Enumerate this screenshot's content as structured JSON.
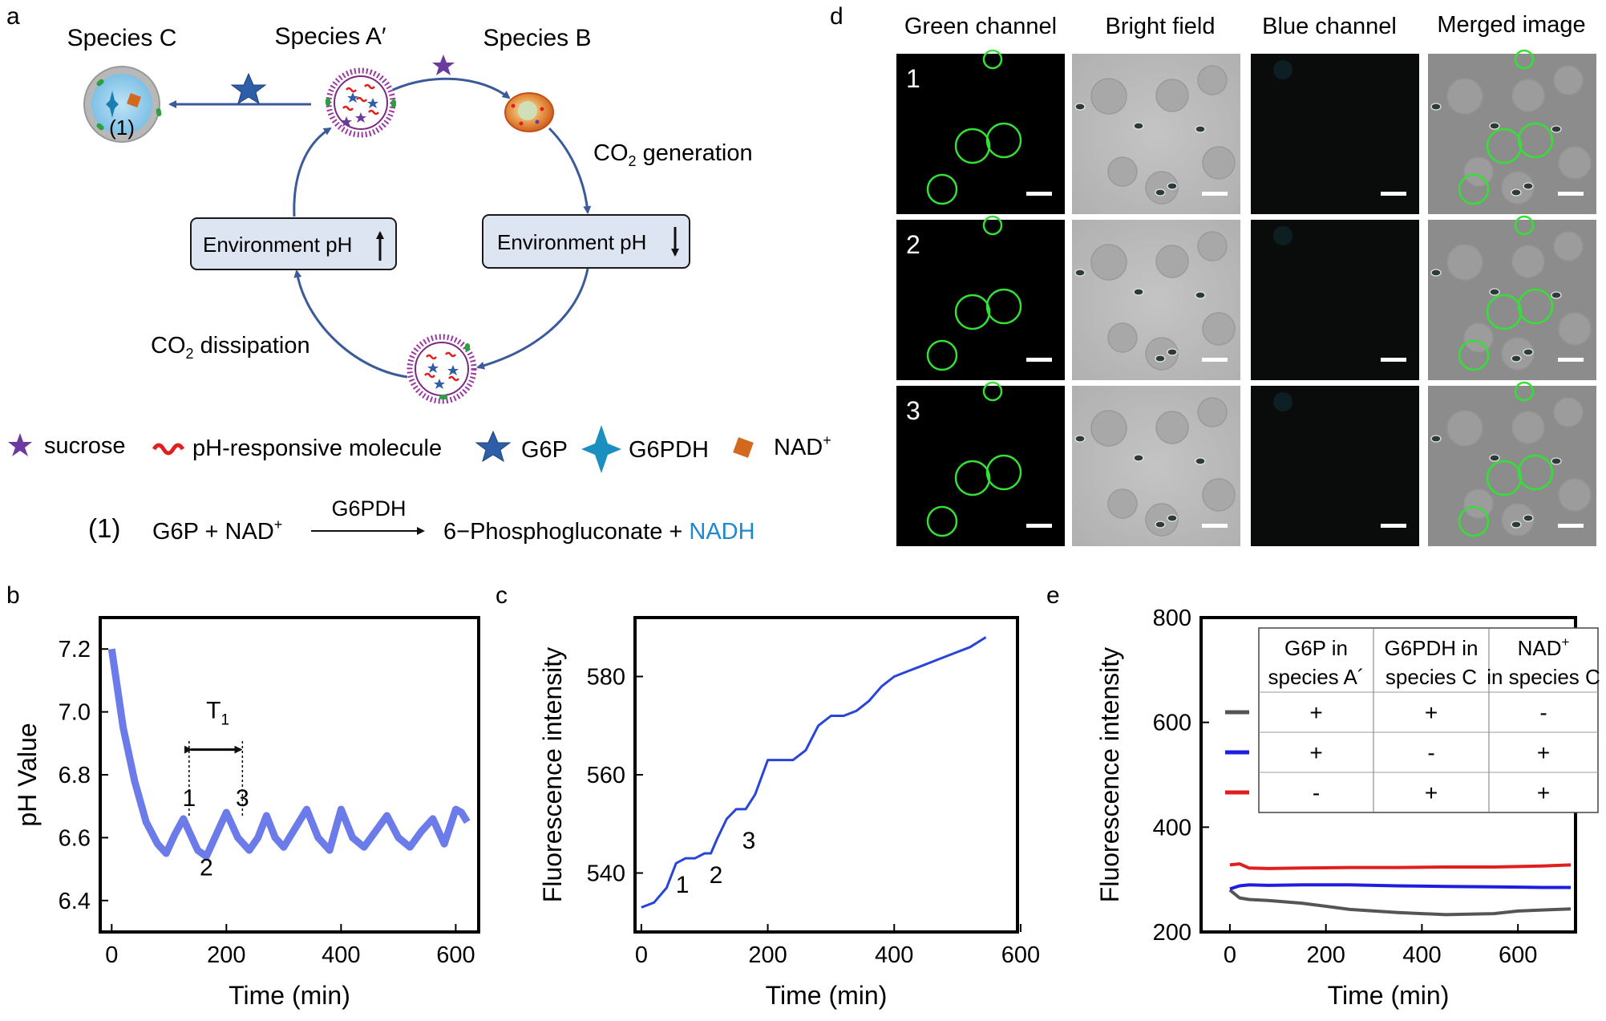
{
  "panel_labels": {
    "a": "a",
    "b": "b",
    "c": "c",
    "d": "d",
    "e": "e"
  },
  "panel_a": {
    "species_c": "Species C",
    "species_a": "Species A′",
    "species_b": "Species B",
    "reaction_tag": "(1)",
    "co2_generation": "CO",
    "co2_generation_sub": "2",
    "co2_generation_rest": " generation",
    "co2_dissipation": "CO",
    "co2_dissipation_sub": "2",
    "co2_dissipation_rest": " dissipation",
    "env_ph_up": "Environment pH",
    "env_ph_down": "Environment pH",
    "legend": {
      "sucrose": "sucrose",
      "ph_molecule": "pH-responsive molecule",
      "g6p": "G6P",
      "g6pdh": "G6PDH",
      "nad": "NAD",
      "nad_sup": "+"
    },
    "equation": {
      "tag": "(1)",
      "left": "G6P + NAD",
      "left_sup": "+",
      "enzyme": "G6PDH",
      "right": "6−Phosphogluconate + ",
      "product": "NADH"
    },
    "colors": {
      "arrow": "#3a5a9a",
      "box": "#dde4f2",
      "star_purple": "#6a3aa0",
      "star_blue": "#2e5ea8",
      "wave_red": "#e02020",
      "nad": "#d2691e",
      "nadh": "#1e88d0"
    }
  },
  "panel_d": {
    "columns": [
      "Green channel",
      "Bright field",
      "Blue channel",
      "Merged image"
    ],
    "rows": [
      "1",
      "2",
      "3"
    ]
  },
  "chart_data": [
    {
      "id": "b",
      "type": "line",
      "xlabel": "Time (min)",
      "ylabel": "pH Value",
      "xlim": [
        -20,
        640
      ],
      "ylim": [
        6.3,
        7.3
      ],
      "xticks": [
        0,
        200,
        400,
        600
      ],
      "yticks": [
        6.4,
        6.6,
        6.8,
        7.0,
        7.2
      ],
      "ytick_labels": [
        "6.4",
        "6.6",
        "6.8",
        "7.0",
        "7.2"
      ],
      "series": [
        {
          "color": "#6b7cea",
          "x": [
            0,
            20,
            40,
            60,
            80,
            95,
            110,
            125,
            135,
            150,
            165,
            180,
            200,
            220,
            240,
            255,
            270,
            285,
            300,
            320,
            340,
            360,
            380,
            400,
            420,
            440,
            460,
            480,
            500,
            520,
            540,
            560,
            580,
            600,
            610,
            620
          ],
          "y": [
            7.2,
            6.95,
            6.78,
            6.65,
            6.58,
            6.55,
            6.61,
            6.66,
            6.62,
            6.56,
            6.54,
            6.6,
            6.68,
            6.6,
            6.56,
            6.6,
            6.67,
            6.6,
            6.57,
            6.63,
            6.69,
            6.6,
            6.56,
            6.69,
            6.6,
            6.57,
            6.62,
            6.67,
            6.6,
            6.57,
            6.62,
            6.66,
            6.58,
            6.69,
            6.68,
            6.65
          ]
        }
      ],
      "annotations": [
        {
          "text": "T",
          "sub": "1",
          "x": 185,
          "y": 6.98
        },
        {
          "text": "1",
          "x": 135,
          "y": 6.7
        },
        {
          "text": "3",
          "x": 228,
          "y": 6.7
        },
        {
          "text": "2",
          "x": 165,
          "y": 6.48
        }
      ],
      "bracket": {
        "x1": 135,
        "x2": 228,
        "y": 6.88,
        "ybase": 6.67
      }
    },
    {
      "id": "c",
      "type": "line",
      "xlabel": "Time (min)",
      "ylabel": "Fluorescence intensity",
      "xlim": [
        -10,
        595
      ],
      "ylim": [
        528,
        592
      ],
      "xticks": [
        0,
        200,
        400,
        600
      ],
      "yticks": [
        540,
        560,
        580
      ],
      "series": [
        {
          "color": "#2845d8",
          "x": [
            0,
            20,
            40,
            55,
            70,
            85,
            100,
            110,
            120,
            135,
            150,
            165,
            180,
            200,
            220,
            240,
            260,
            280,
            300,
            320,
            340,
            360,
            380,
            400,
            420,
            440,
            460,
            480,
            500,
            520,
            545
          ],
          "y": [
            533,
            534,
            537,
            542,
            543,
            543,
            544,
            544,
            547,
            551,
            553,
            553,
            556,
            563,
            563,
            563,
            565,
            570,
            572,
            572,
            573,
            575,
            578,
            580,
            581,
            582,
            583,
            584,
            585,
            586,
            588
          ]
        }
      ],
      "annotations": [
        {
          "text": "1",
          "x": 65,
          "y": 536
        },
        {
          "text": "2",
          "x": 118,
          "y": 538
        },
        {
          "text": "3",
          "x": 170,
          "y": 545
        }
      ]
    },
    {
      "id": "e",
      "type": "line",
      "xlabel": "Time (min)",
      "ylabel": "Fluorescence intensity",
      "xlim": [
        -60,
        720
      ],
      "ylim": [
        200,
        800
      ],
      "xticks": [
        0,
        200,
        400,
        600
      ],
      "yticks": [
        200,
        400,
        600,
        800
      ],
      "series": [
        {
          "color": "#555555",
          "x": [
            0,
            20,
            40,
            80,
            150,
            250,
            350,
            450,
            550,
            600,
            650,
            710
          ],
          "y": [
            280,
            265,
            262,
            260,
            255,
            243,
            237,
            233,
            235,
            240,
            242,
            244
          ]
        },
        {
          "color": "#1e1ee0",
          "x": [
            0,
            20,
            40,
            80,
            150,
            250,
            350,
            450,
            550,
            650,
            710
          ],
          "y": [
            282,
            288,
            290,
            289,
            290,
            290,
            288,
            287,
            286,
            285,
            285
          ]
        },
        {
          "color": "#e01e1e",
          "x": [
            0,
            20,
            40,
            80,
            150,
            250,
            350,
            450,
            550,
            650,
            710
          ],
          "y": [
            328,
            330,
            322,
            321,
            322,
            323,
            323,
            324,
            324,
            326,
            328
          ]
        }
      ],
      "table": {
        "headers": [
          [
            "G6P  in",
            "species A´"
          ],
          [
            "G6PDH in",
            "species C"
          ],
          [
            "NAD",
            "in species C"
          ]
        ],
        "nad_sup": "+",
        "rows": [
          [
            "+",
            "+",
            "-"
          ],
          [
            "+",
            "-",
            "+"
          ],
          [
            "-",
            "+",
            "+"
          ]
        ],
        "row_colors": [
          "#555555",
          "#1e1ee0",
          "#e01e1e"
        ]
      }
    }
  ]
}
